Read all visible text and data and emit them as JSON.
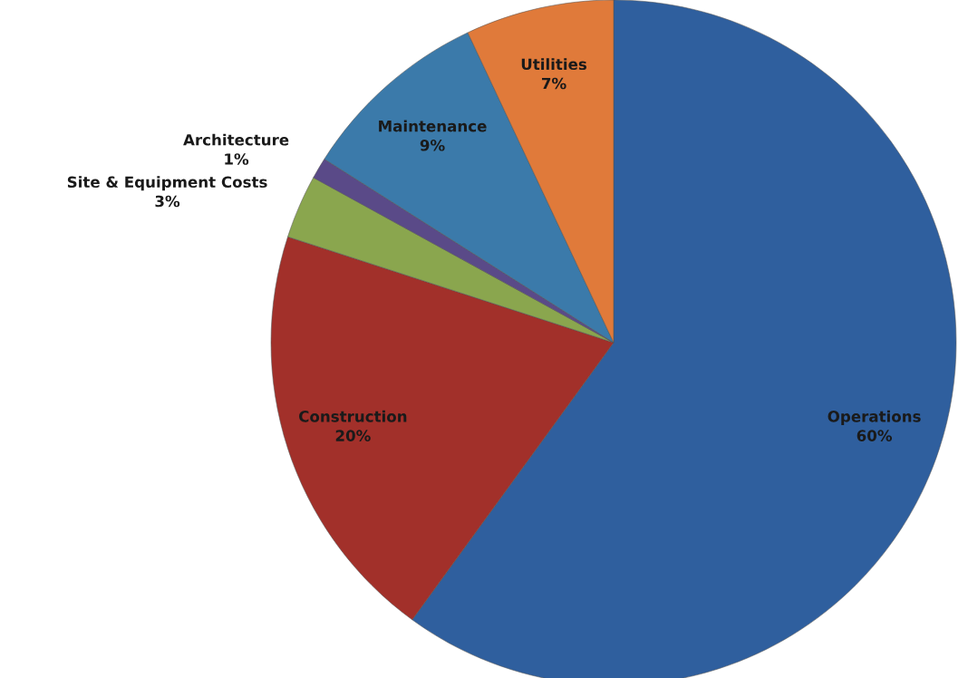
{
  "chart_data": {
    "type": "pie",
    "categories": [
      "Operations",
      "Construction",
      "Site & Equipment Costs",
      "Architecture",
      "Maintenance",
      "Utilities"
    ],
    "values": [
      60,
      20,
      3,
      1,
      9,
      7
    ],
    "colors": [
      "#2f5f9e",
      "#a2302a",
      "#8aa64e",
      "#5a4a88",
      "#3b7aaa",
      "#e07a3a"
    ],
    "value_labels": [
      "60%",
      "20%",
      "3%",
      "1%",
      "9%",
      "7%"
    ]
  }
}
